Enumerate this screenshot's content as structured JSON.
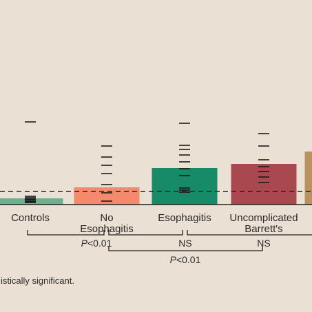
{
  "chart_data": {
    "type": "bar",
    "categories": [
      {
        "lines": [
          "Controls"
        ]
      },
      {
        "lines": [
          "No",
          "Esophagitis"
        ]
      },
      {
        "lines": [
          "Esophagitis"
        ]
      },
      {
        "lines": [
          "Uncomplicated",
          "Barrett's"
        ]
      },
      {
        "lines": [
          ""
        ]
      }
    ],
    "values": [
      9,
      25,
      53,
      59,
      77
    ],
    "colors": [
      "#6fae8e",
      "#f4896b",
      "#178a68",
      "#a9484e",
      "#b8935e"
    ],
    "points": [
      [
        120,
        5,
        10,
        7,
        3,
        12,
        4,
        8
      ],
      [
        85,
        69,
        57,
        45,
        29,
        17,
        5
      ],
      [
        118,
        86,
        80,
        72,
        62,
        52,
        42,
        24,
        21,
        18
      ],
      [
        103,
        85,
        65,
        55,
        48,
        40,
        32
      ],
      []
    ],
    "reference_line": 19,
    "ylim": [
      0,
      200
    ],
    "grid": false,
    "comparisons": [
      {
        "label": "P<0.01",
        "italic_p": true,
        "from": 0,
        "to": 2
      },
      {
        "label": "NS",
        "italic_p": false,
        "from": 1,
        "to": 2
      },
      {
        "label": "NS",
        "italic_p": false,
        "from": 2,
        "to": 3
      },
      {
        "label": "P<0.01",
        "italic_p": true,
        "from": 1,
        "to": 3
      }
    ],
    "footnote": "istically significant."
  }
}
